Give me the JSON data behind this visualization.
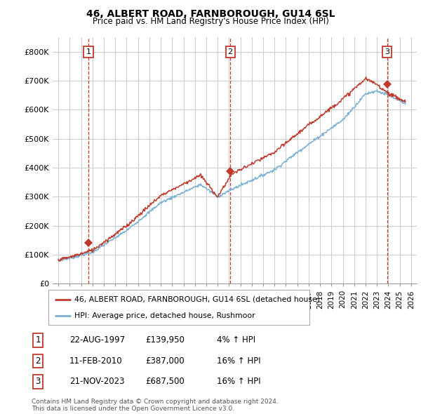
{
  "title1": "46, ALBERT ROAD, FARNBOROUGH, GU14 6SL",
  "title2": "Price paid vs. HM Land Registry's House Price Index (HPI)",
  "ylim": [
    0,
    850000
  ],
  "yticks": [
    0,
    100000,
    200000,
    300000,
    400000,
    500000,
    600000,
    700000,
    800000
  ],
  "ytick_labels": [
    "£0",
    "£100K",
    "£200K",
    "£300K",
    "£400K",
    "£500K",
    "£600K",
    "£700K",
    "£800K"
  ],
  "hpi_color": "#7ab0d4",
  "price_color": "#c0392b",
  "sale_dates": [
    1997.64,
    2010.11,
    2023.9
  ],
  "sale_prices": [
    139950,
    387000,
    687500
  ],
  "sale_labels": [
    "1",
    "2",
    "3"
  ],
  "legend_price_label": "46, ALBERT ROAD, FARNBOROUGH, GU14 6SL (detached house)",
  "legend_hpi_label": "HPI: Average price, detached house, Rushmoor",
  "table_rows": [
    [
      "1",
      "22-AUG-1997",
      "£139,950",
      "4% ↑ HPI"
    ],
    [
      "2",
      "11-FEB-2010",
      "£387,000",
      "16% ↑ HPI"
    ],
    [
      "3",
      "21-NOV-2023",
      "£687,500",
      "16% ↑ HPI"
    ]
  ],
  "footer": "Contains HM Land Registry data © Crown copyright and database right 2024.\nThis data is licensed under the Open Government Licence v3.0.",
  "bg_color": "#ffffff",
  "grid_color": "#cccccc",
  "xlim": [
    1994.5,
    2026.5
  ],
  "xticks": [
    1995,
    1996,
    1997,
    1998,
    1999,
    2000,
    2001,
    2002,
    2003,
    2004,
    2005,
    2006,
    2007,
    2008,
    2009,
    2010,
    2011,
    2012,
    2013,
    2014,
    2015,
    2016,
    2017,
    2018,
    2019,
    2020,
    2021,
    2022,
    2023,
    2024,
    2025,
    2026
  ]
}
